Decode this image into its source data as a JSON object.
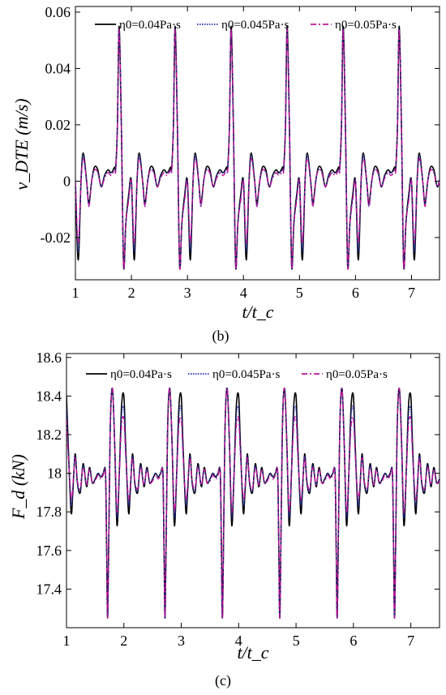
{
  "chart_data": [
    {
      "panel": "(b)",
      "type": "line",
      "xlabel": "t/t_c",
      "ylabel": "v_DTE (m/s)",
      "xlim": [
        1,
        7.5
      ],
      "ylim": [
        -0.035,
        0.062
      ],
      "xticks": [
        "1",
        "2",
        "3",
        "4",
        "5",
        "6",
        "7"
      ],
      "yticks": [
        "-0.02",
        "0",
        "0.02",
        "0.04",
        "0.06"
      ],
      "legend": "top",
      "grid": false,
      "period": 1,
      "series": [
        {
          "name": "η0=0.04Pa·s",
          "color": "#000000",
          "style": "solid",
          "cycle_x": [
            0.0,
            0.05,
            0.1,
            0.14,
            0.2,
            0.24,
            0.29,
            0.34,
            0.4,
            0.46,
            0.52,
            0.58,
            0.64,
            0.7,
            0.72,
            0.75,
            0.78,
            0.82,
            0.86,
            0.9,
            0.95,
            1.0
          ],
          "cycle_y": [
            0.0,
            -0.028,
            0.0,
            0.01,
            0.0,
            -0.008,
            0.0,
            0.005,
            0.004,
            -0.002,
            0.002,
            0.004,
            0.003,
            0.005,
            0.005,
            0.02,
            0.055,
            0.02,
            -0.03,
            -0.015,
            -0.005,
            0.0
          ]
        },
        {
          "name": "η0=0.045Pa·s",
          "color": "#1f2fb4",
          "style": "dotted",
          "cycle_x": [
            0.0,
            0.05,
            0.1,
            0.14,
            0.2,
            0.24,
            0.29,
            0.34,
            0.4,
            0.46,
            0.52,
            0.58,
            0.64,
            0.7,
            0.72,
            0.75,
            0.78,
            0.82,
            0.86,
            0.9,
            0.95,
            1.0
          ],
          "cycle_y": [
            0.0,
            -0.025,
            0.0,
            0.009,
            0.0,
            -0.009,
            0.0,
            0.004,
            0.003,
            -0.002,
            0.002,
            0.003,
            0.003,
            0.004,
            0.004,
            0.02,
            0.054,
            0.02,
            -0.03,
            -0.015,
            -0.006,
            0.0
          ]
        },
        {
          "name": "η0=0.05Pa·s",
          "color": "#c0139a",
          "style": "dashdot",
          "cycle_x": [
            0.0,
            0.05,
            0.1,
            0.14,
            0.2,
            0.24,
            0.29,
            0.34,
            0.4,
            0.46,
            0.52,
            0.58,
            0.64,
            0.7,
            0.72,
            0.75,
            0.78,
            0.82,
            0.86,
            0.9,
            0.95,
            1.0
          ],
          "cycle_y": [
            0.0,
            -0.022,
            0.0,
            0.008,
            0.0,
            -0.009,
            0.0,
            0.004,
            0.003,
            -0.002,
            0.001,
            0.003,
            0.002,
            0.004,
            0.004,
            0.02,
            0.054,
            0.02,
            -0.03,
            -0.015,
            -0.007,
            0.0
          ]
        }
      ]
    },
    {
      "panel": "(c)",
      "type": "line",
      "xlabel": "t/t_c",
      "ylabel": "F_d (kN)",
      "xlim": [
        1,
        7.5
      ],
      "ylim": [
        17.2,
        18.62
      ],
      "xticks": [
        "1",
        "2",
        "3",
        "4",
        "5",
        "6",
        "7"
      ],
      "yticks": [
        "17.4",
        "17.6",
        "17.8",
        "18",
        "18.2",
        "18.4",
        "18.6"
      ],
      "legend": "top",
      "grid": false,
      "period": 1,
      "series": [
        {
          "name": "η0=0.04Pa·s",
          "color": "#000000",
          "style": "solid",
          "cycle_x": [
            0.0,
            0.03,
            0.08,
            0.11,
            0.15,
            0.19,
            0.24,
            0.29,
            0.35,
            0.4,
            0.45,
            0.5,
            0.55,
            0.6,
            0.64,
            0.68,
            0.7,
            0.72,
            0.76,
            0.8,
            0.84,
            0.88,
            0.92,
            0.96,
            1.0
          ],
          "cycle_y": [
            18.4,
            18.15,
            17.8,
            17.9,
            18.1,
            17.95,
            17.9,
            18.05,
            17.93,
            18.03,
            17.95,
            17.97,
            18.0,
            17.98,
            18.0,
            18.0,
            17.6,
            17.27,
            18.2,
            18.44,
            18.15,
            17.73,
            18.0,
            18.35,
            18.4
          ]
        },
        {
          "name": "η0=0.045Pa·s",
          "color": "#1f2fb4",
          "style": "dotted",
          "cycle_x": [
            0.0,
            0.03,
            0.08,
            0.11,
            0.15,
            0.19,
            0.24,
            0.29,
            0.35,
            0.4,
            0.45,
            0.5,
            0.55,
            0.6,
            0.64,
            0.68,
            0.7,
            0.72,
            0.76,
            0.8,
            0.84,
            0.88,
            0.92,
            0.96,
            1.0
          ],
          "cycle_y": [
            18.33,
            18.12,
            17.84,
            17.92,
            18.09,
            17.95,
            17.91,
            18.04,
            17.94,
            18.02,
            17.95,
            17.97,
            18.0,
            17.98,
            18.0,
            18.0,
            17.6,
            17.27,
            18.2,
            18.44,
            18.15,
            17.77,
            18.0,
            18.3,
            18.33
          ]
        },
        {
          "name": "η0=0.05Pa·s",
          "color": "#c0139a",
          "style": "dashdot",
          "cycle_x": [
            0.0,
            0.03,
            0.08,
            0.11,
            0.15,
            0.19,
            0.24,
            0.29,
            0.35,
            0.4,
            0.45,
            0.5,
            0.55,
            0.6,
            0.64,
            0.68,
            0.7,
            0.72,
            0.76,
            0.8,
            0.84,
            0.88,
            0.92,
            0.96,
            1.0
          ],
          "cycle_y": [
            18.28,
            18.1,
            17.87,
            17.93,
            18.08,
            17.96,
            17.92,
            18.03,
            17.94,
            18.02,
            17.95,
            17.96,
            17.99,
            17.97,
            17.99,
            18.0,
            17.6,
            17.27,
            18.2,
            18.44,
            18.15,
            17.8,
            18.0,
            18.25,
            18.28
          ]
        }
      ]
    }
  ]
}
